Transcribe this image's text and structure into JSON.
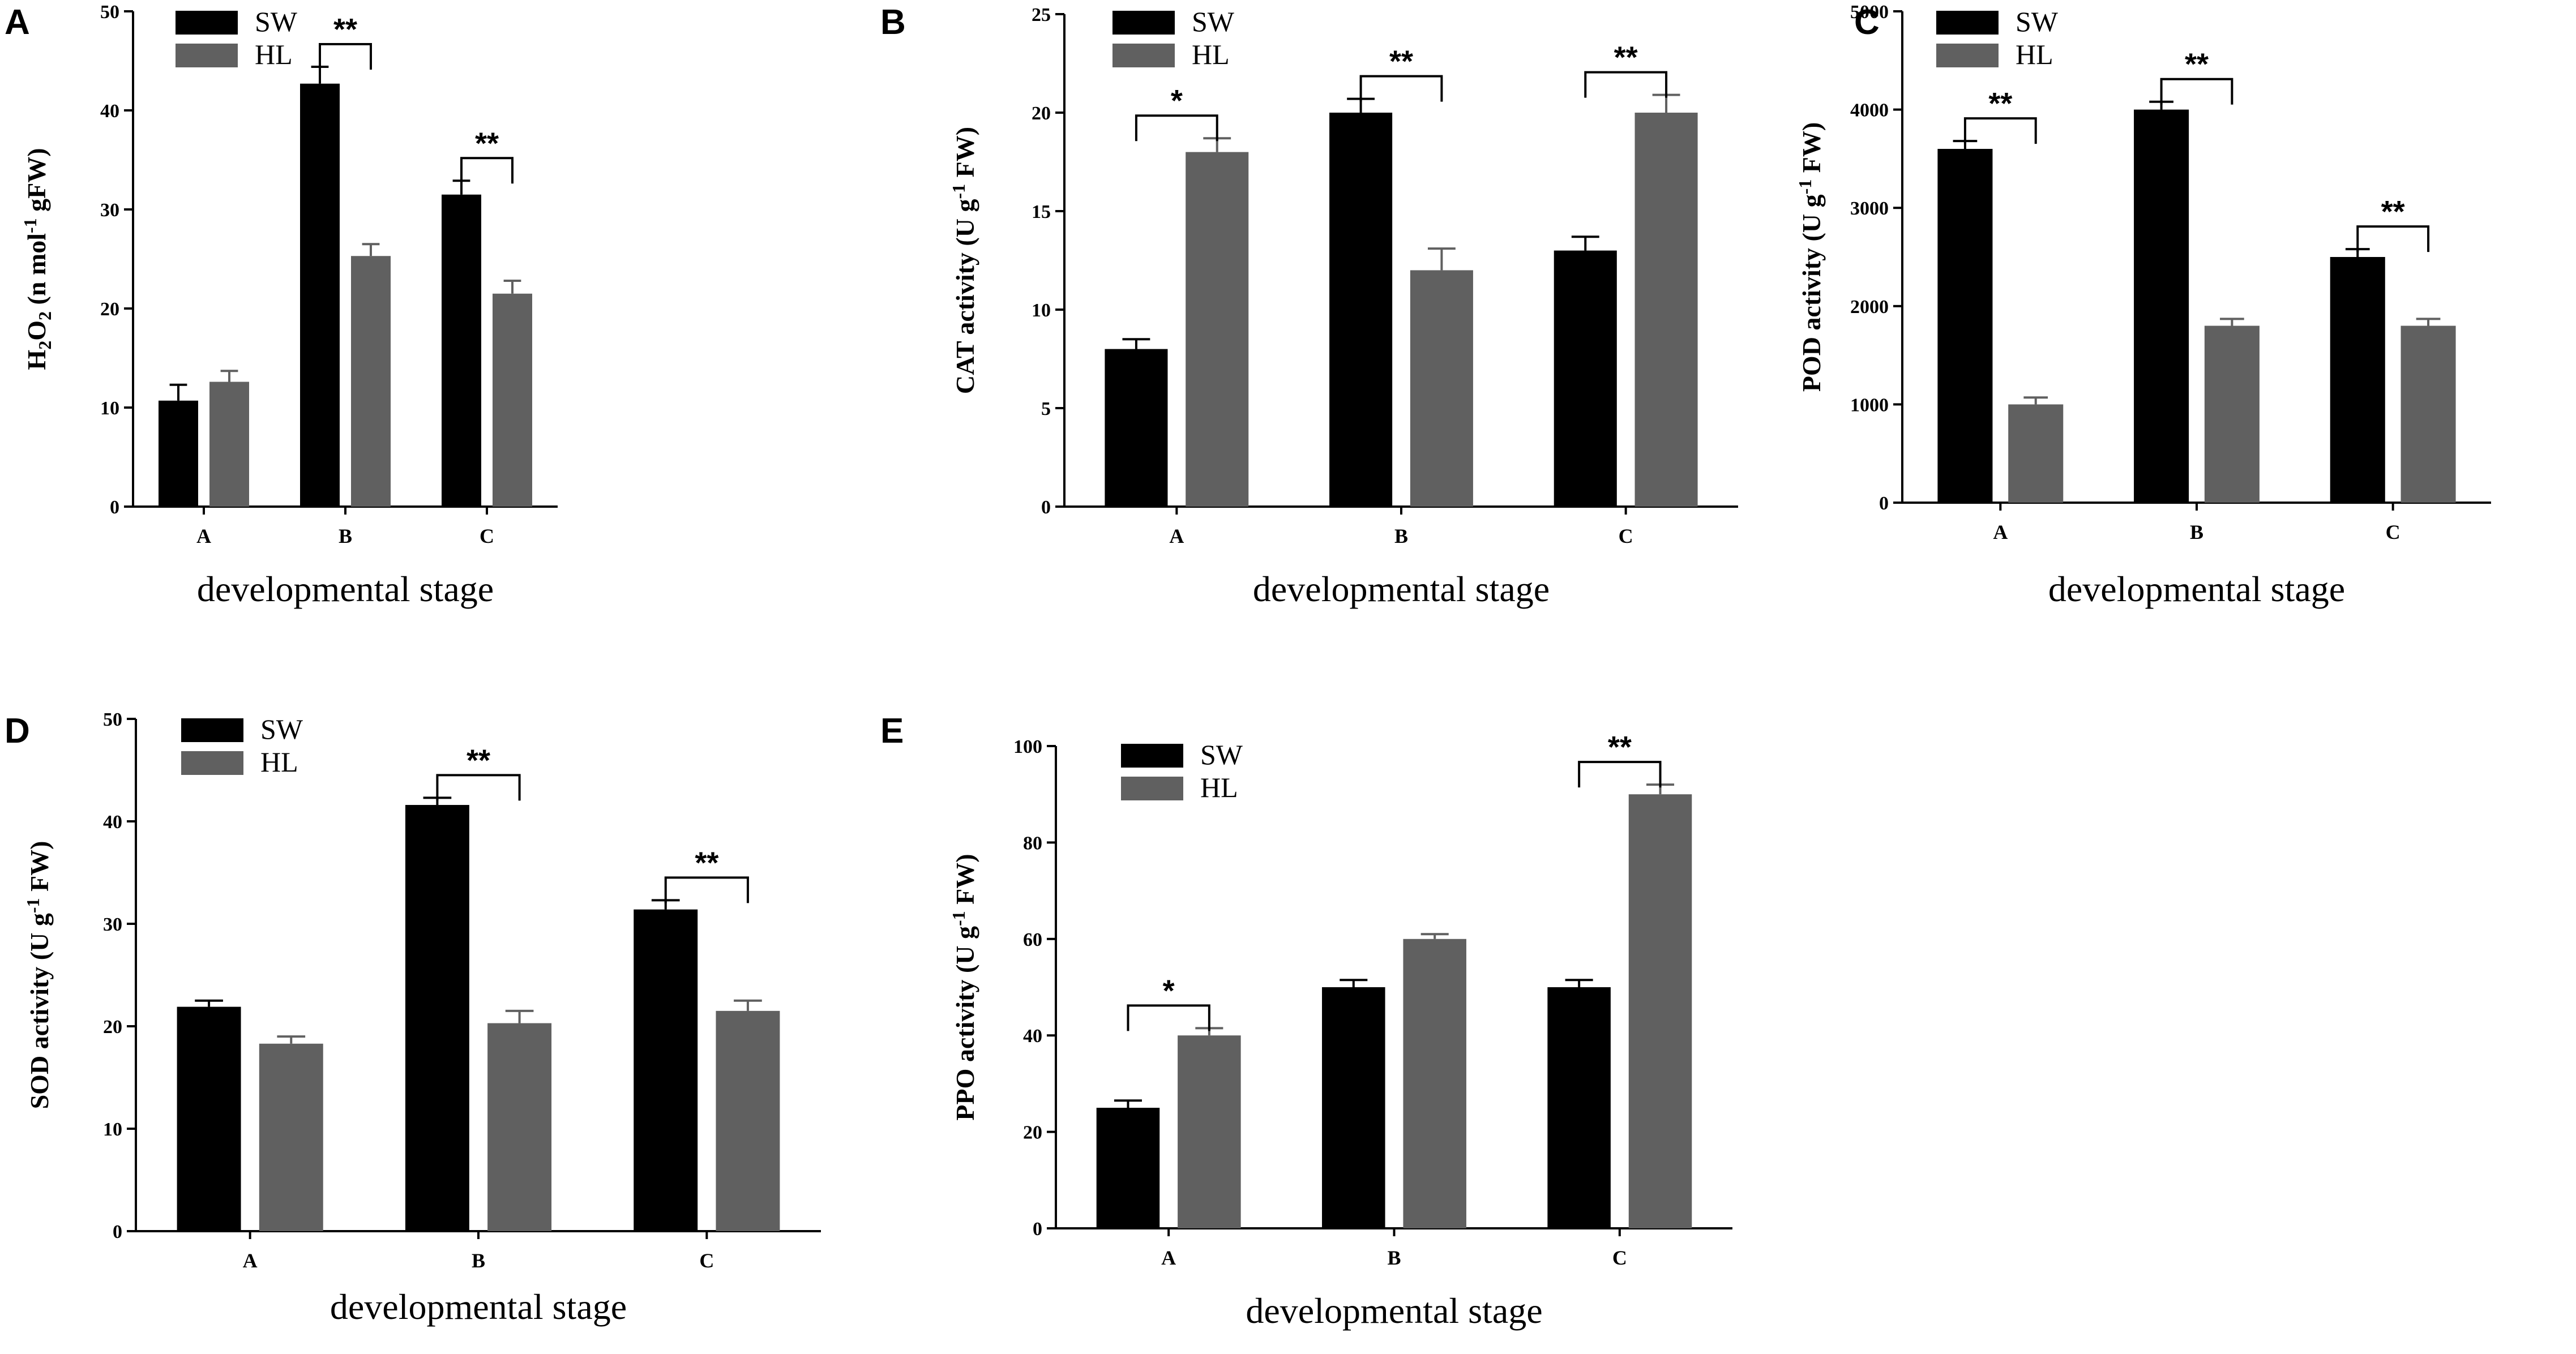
{
  "chart_data": [
    {
      "panel": "A",
      "type": "bar",
      "title": "",
      "xlabel": "developmental stage",
      "ylabel": "H2O2 (n mol-1 gFW)",
      "ylabel_parts": {
        "a": "H",
        "b": "2",
        "c": "O",
        "d": "2",
        "e": " (n mol",
        "f": "-1",
        "g": " gFW)"
      },
      "ylim": [
        0,
        50
      ],
      "yticks": [
        0,
        10,
        20,
        30,
        40,
        50
      ],
      "categories": [
        "A",
        "B",
        "C"
      ],
      "series": [
        {
          "name": "SW",
          "color": "#000000",
          "values": [
            10.7,
            42.7,
            31.5
          ],
          "errors": [
            1.6,
            1.7,
            1.4
          ]
        },
        {
          "name": "HL",
          "color": "#606060",
          "values": [
            12.6,
            25.3,
            21.5
          ],
          "errors": [
            1.1,
            1.2,
            1.3
          ]
        }
      ],
      "significance": [
        {
          "category": "B",
          "label": "**"
        },
        {
          "category": "C",
          "label": "**"
        }
      ]
    },
    {
      "panel": "B",
      "type": "bar",
      "title": "",
      "xlabel": "developmental stage",
      "ylabel": "CAT activity (U g-1 FW)",
      "ylabel_parts": {
        "a": "CAT activity (U g",
        "b": "-1",
        "c": " FW)"
      },
      "ylim": [
        0,
        25
      ],
      "yticks": [
        0,
        5,
        10,
        15,
        20,
        25
      ],
      "categories": [
        "A",
        "B",
        "C"
      ],
      "series": [
        {
          "name": "SW",
          "color": "#000000",
          "values": [
            8,
            20,
            13
          ],
          "errors": [
            0.5,
            0.7,
            0.7
          ]
        },
        {
          "name": "HL",
          "color": "#606060",
          "values": [
            18,
            12,
            20
          ],
          "errors": [
            0.7,
            1.1,
            0.9
          ]
        }
      ],
      "significance": [
        {
          "category": "A",
          "label": "*"
        },
        {
          "category": "B",
          "label": "**"
        },
        {
          "category": "C",
          "label": "**"
        }
      ]
    },
    {
      "panel": "C",
      "type": "bar",
      "title": "",
      "xlabel": "developmental stage",
      "ylabel": "POD activity (U g-1 FW)",
      "ylabel_parts": {
        "a": "POD activity (U g",
        "b": "-1",
        "c": " FW)"
      },
      "ylim": [
        0,
        5000
      ],
      "yticks": [
        0,
        1000,
        2000,
        3000,
        4000,
        5000
      ],
      "categories": [
        "A",
        "B",
        "C"
      ],
      "series": [
        {
          "name": "SW",
          "color": "#000000",
          "values": [
            3600,
            4000,
            2500
          ],
          "errors": [
            80,
            80,
            80
          ]
        },
        {
          "name": "HL",
          "color": "#606060",
          "values": [
            1000,
            1800,
            1800
          ],
          "errors": [
            70,
            70,
            70
          ]
        }
      ],
      "significance": [
        {
          "category": "A",
          "label": "**"
        },
        {
          "category": "B",
          "label": "**"
        },
        {
          "category": "C",
          "label": "**"
        }
      ]
    },
    {
      "panel": "D",
      "type": "bar",
      "title": "",
      "xlabel": "developmental stage",
      "ylabel": "SOD activity (U g-1 FW)",
      "ylabel_parts": {
        "a": "SOD activity (U g",
        "b": "-1",
        "c": " FW)"
      },
      "ylim": [
        0,
        50
      ],
      "yticks": [
        0,
        10,
        20,
        30,
        40,
        50
      ],
      "categories": [
        "A",
        "B",
        "C"
      ],
      "series": [
        {
          "name": "SW",
          "color": "#000000",
          "values": [
            21.9,
            41.6,
            31.4
          ],
          "errors": [
            0.6,
            0.7,
            0.9
          ]
        },
        {
          "name": "HL",
          "color": "#606060",
          "values": [
            18.3,
            20.3,
            21.5
          ],
          "errors": [
            0.7,
            1.2,
            1.0
          ]
        }
      ],
      "significance": [
        {
          "category": "B",
          "label": "**"
        },
        {
          "category": "C",
          "label": "**"
        }
      ]
    },
    {
      "panel": "E",
      "type": "bar",
      "title": "",
      "xlabel": "developmental stage",
      "ylabel": "PPO activity (U g-1 FW)",
      "ylabel_parts": {
        "a": "PPO activity (U g",
        "b": "-1",
        "c": " FW)"
      },
      "ylim": [
        0,
        100
      ],
      "yticks": [
        0,
        20,
        40,
        60,
        80,
        100
      ],
      "categories": [
        "A",
        "B",
        "C"
      ],
      "series": [
        {
          "name": "SW",
          "color": "#000000",
          "values": [
            25,
            50,
            50
          ],
          "errors": [
            1.5,
            1.5,
            1.5
          ]
        },
        {
          "name": "HL",
          "color": "#606060",
          "values": [
            40,
            60,
            90
          ],
          "errors": [
            1.5,
            1.0,
            2.0
          ]
        }
      ],
      "significance": [
        {
          "category": "A",
          "label": "*"
        },
        {
          "category": "C",
          "label": "**"
        }
      ]
    }
  ]
}
